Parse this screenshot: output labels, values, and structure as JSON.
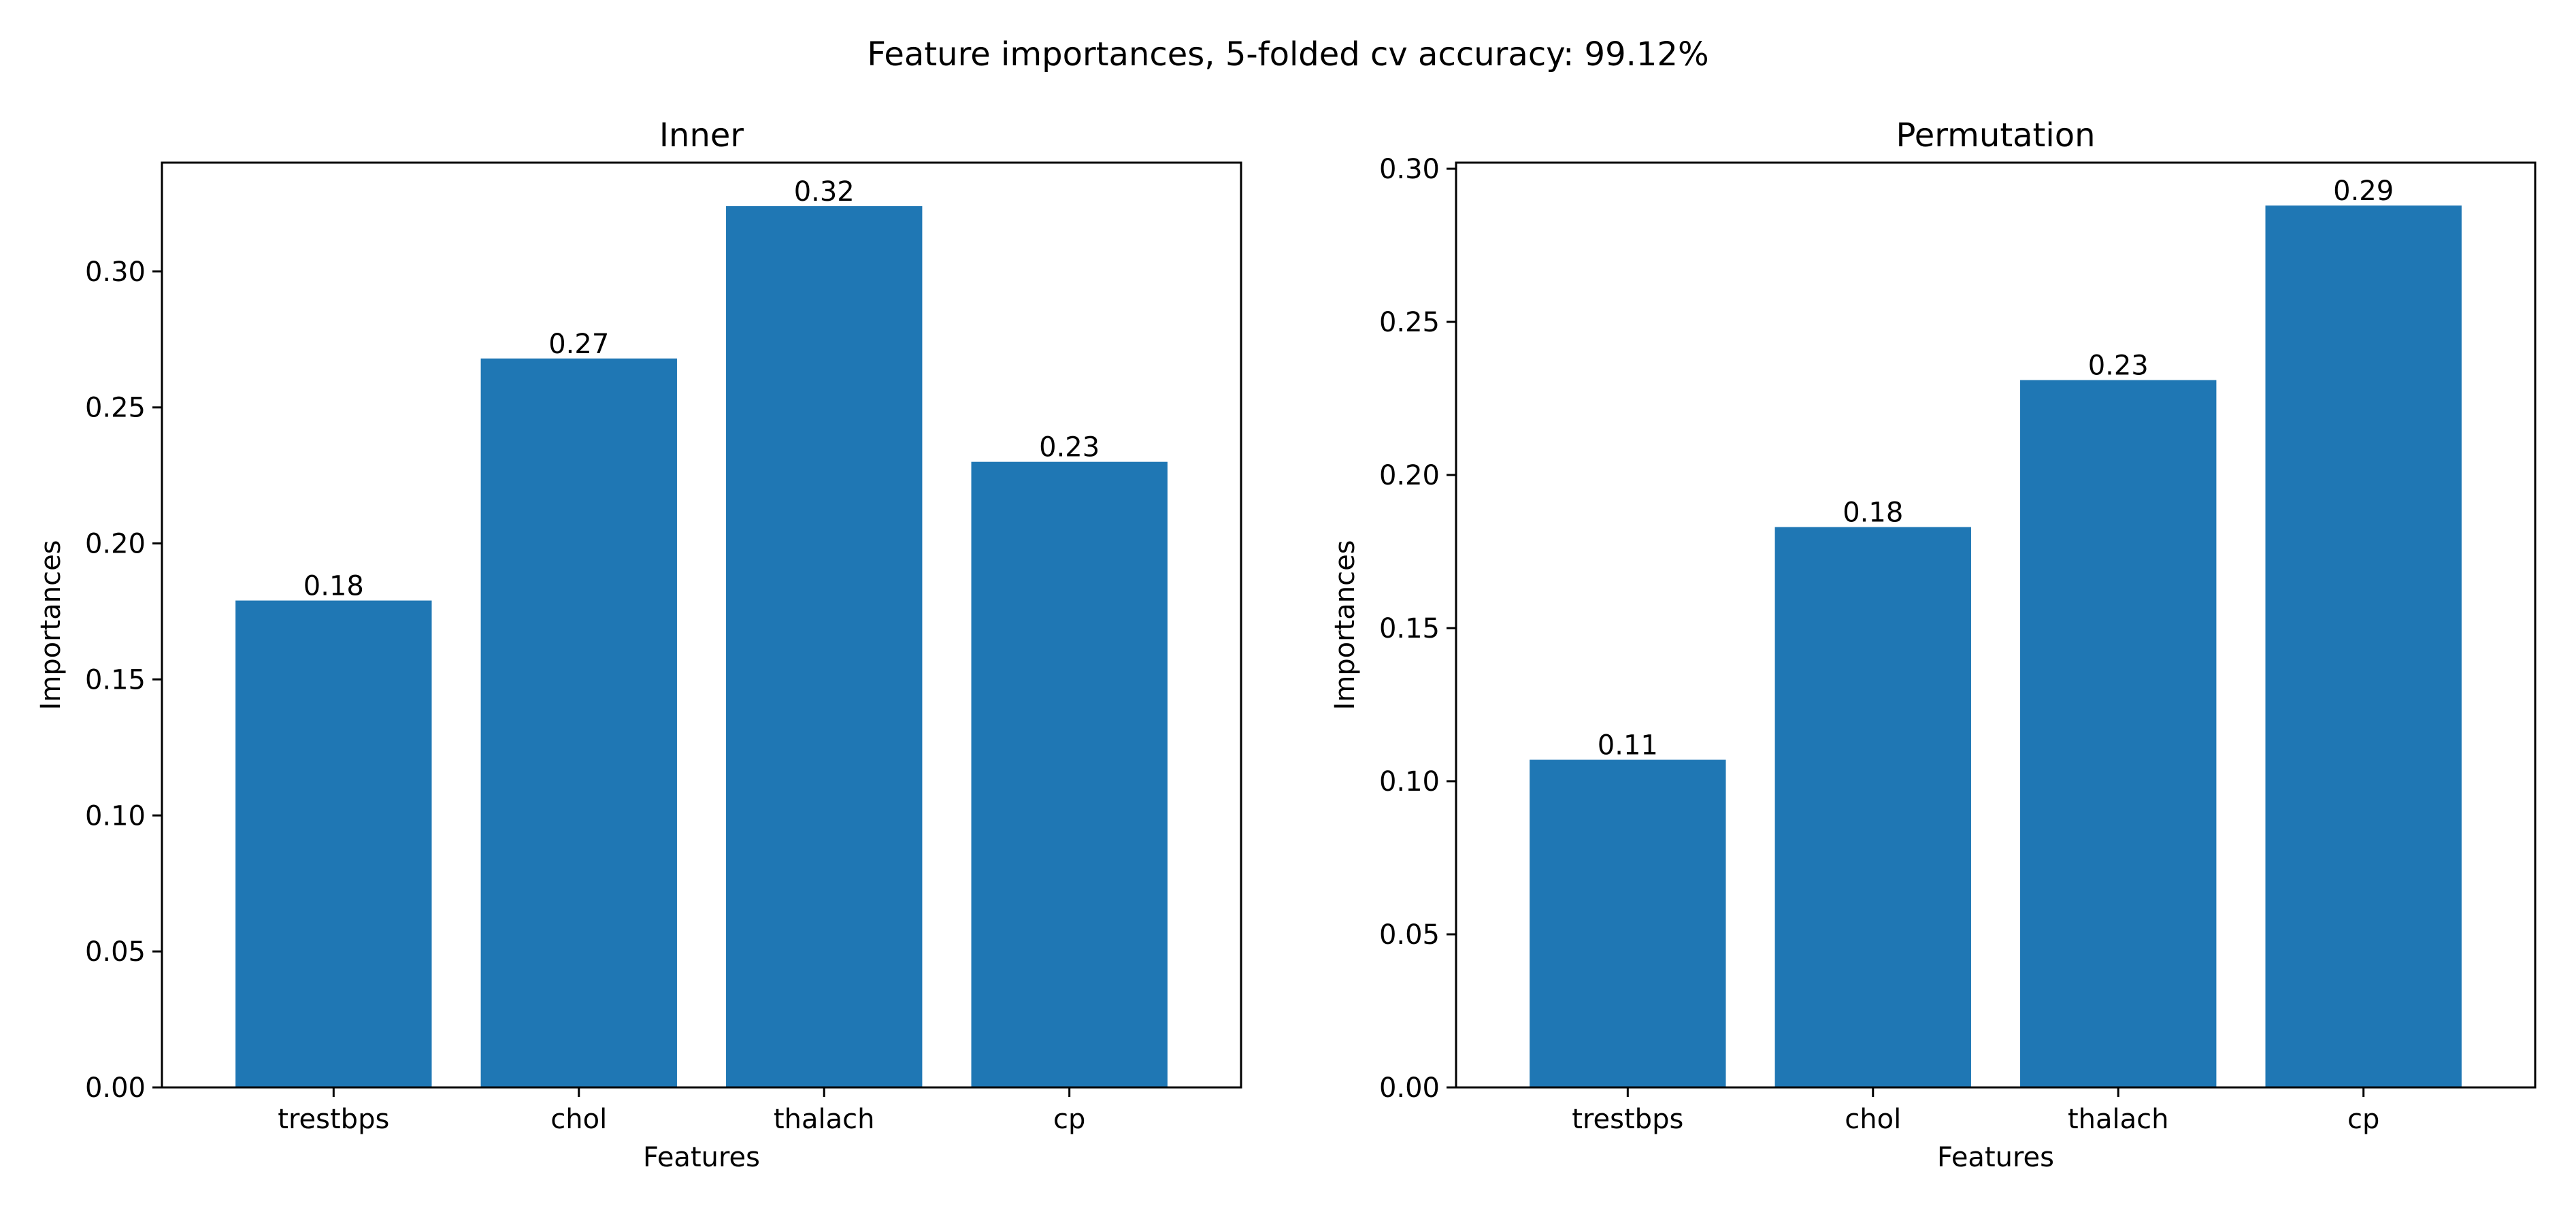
{
  "figure": {
    "suptitle": "Feature importances, 5-folded cv accuracy: 99.12%"
  },
  "colors": {
    "bar": "#1f77b4",
    "axis": "#000000",
    "background": "#ffffff"
  },
  "chart_data": [
    {
      "type": "bar",
      "title": "Inner",
      "xlabel": "Features",
      "ylabel": "Importances",
      "categories": [
        "trestbps",
        "chol",
        "thalach",
        "cp"
      ],
      "values": [
        0.179,
        0.268,
        0.324,
        0.23
      ],
      "data_labels": [
        "0.18",
        "0.27",
        "0.32",
        "0.23"
      ],
      "ylim": [
        0,
        0.34
      ],
      "yticks": [
        0.0,
        0.05,
        0.1,
        0.15,
        0.2,
        0.25,
        0.3
      ],
      "ytick_labels": [
        "0.00",
        "0.05",
        "0.10",
        "0.15",
        "0.20",
        "0.25",
        "0.30"
      ],
      "grid": false,
      "legend": false
    },
    {
      "type": "bar",
      "title": "Permutation",
      "xlabel": "Features",
      "ylabel": "Importances",
      "categories": [
        "trestbps",
        "chol",
        "thalach",
        "cp"
      ],
      "values": [
        0.107,
        0.183,
        0.231,
        0.288
      ],
      "data_labels": [
        "0.11",
        "0.18",
        "0.23",
        "0.29"
      ],
      "ylim": [
        0,
        0.302
      ],
      "yticks": [
        0.0,
        0.05,
        0.1,
        0.15,
        0.2,
        0.25,
        0.3
      ],
      "ytick_labels": [
        "0.00",
        "0.05",
        "0.10",
        "0.15",
        "0.20",
        "0.25",
        "0.30"
      ],
      "grid": false,
      "legend": false
    }
  ]
}
